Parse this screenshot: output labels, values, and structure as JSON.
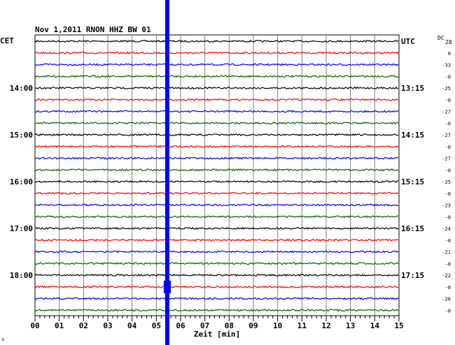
{
  "chart_data": {
    "type": "line",
    "title": "Nov 1,2011   RNON HHZ BW 01",
    "xlabel": "Zeit [min]",
    "left_axis_label": "CET",
    "right_axis_label": "UTC",
    "dc_header": "DC",
    "dc_header_value": "28",
    "x_range": [
      0,
      15
    ],
    "x_ticks": [
      "00",
      "01",
      "02",
      "03",
      "04",
      "05",
      "06",
      "07",
      "08",
      "09",
      "10",
      "11",
      "12",
      "13",
      "14",
      "15"
    ],
    "trace_count": 24,
    "trace_colors": [
      "#000000",
      "#ff0000",
      "#0000ff",
      "#006400"
    ],
    "cet_hour_labels": [
      {
        "trace": 4,
        "label": "14:00"
      },
      {
        "trace": 8,
        "label": "15:00"
      },
      {
        "trace": 12,
        "label": "16:00"
      },
      {
        "trace": 16,
        "label": "17:00"
      },
      {
        "trace": 20,
        "label": "18:00"
      }
    ],
    "utc_hour_labels": [
      {
        "trace": 0,
        "label": "UTC"
      },
      {
        "trace": 4,
        "label": "13:15"
      },
      {
        "trace": 8,
        "label": "14:15"
      },
      {
        "trace": 12,
        "label": "15:15"
      },
      {
        "trace": 16,
        "label": "16:15"
      },
      {
        "trace": 20,
        "label": "17:15"
      }
    ],
    "dc_offsets": [
      "0",
      "-33",
      "-0",
      "-25",
      "-0",
      "-27",
      "-0",
      "-27",
      "-0",
      "-27",
      "-0",
      "-25",
      "-0",
      "-23",
      "-0",
      "-24",
      "-0",
      "-21",
      "-0",
      "-22",
      "-0",
      "-26",
      "-0"
    ],
    "event_marker": {
      "minute": 5.45,
      "color": "#0000ff"
    },
    "corner_mark": "x"
  },
  "colors": {
    "axes": "#000000",
    "grid": "#7f7f7f",
    "background": "#ffffff"
  }
}
